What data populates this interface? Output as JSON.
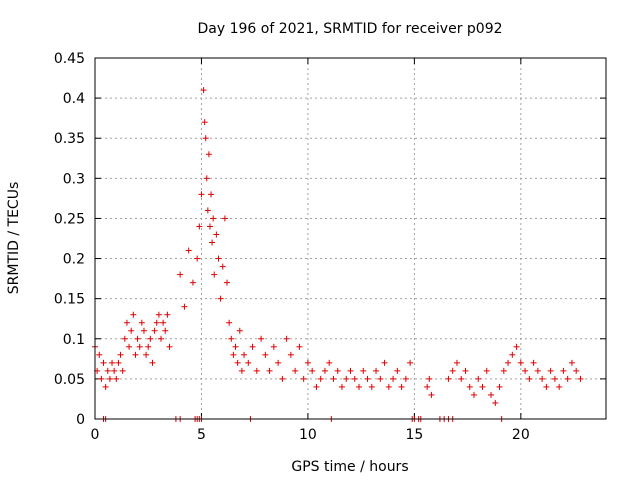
{
  "chart_data": {
    "type": "scatter",
    "title": "Day 196 of 2021, SRMTID for receiver p092",
    "xlabel": "GPS time / hours",
    "ylabel": "SRMTID / TECUs",
    "xlim": [
      0,
      24
    ],
    "ylim": [
      0,
      0.45
    ],
    "xticks": [
      0,
      5,
      10,
      15,
      20
    ],
    "yticks": [
      0,
      0.05,
      0.1,
      0.15,
      0.2,
      0.25,
      0.3,
      0.35,
      0.4,
      0.45
    ],
    "xtick_labels": [
      "0",
      "5",
      "10",
      "15",
      "20"
    ],
    "ytick_labels": [
      "0",
      "0.05",
      "0.1",
      "0.15",
      "0.2",
      "0.25",
      "0.3",
      "0.35",
      "0.4",
      "0.45"
    ],
    "grid": true,
    "marker": "+",
    "color": "#e00000",
    "series": [
      {
        "name": "SRMTID",
        "x": [
          0.0,
          0.1,
          0.2,
          0.3,
          0.4,
          0.5,
          0.6,
          0.7,
          0.8,
          0.9,
          1.0,
          1.1,
          1.2,
          1.3,
          1.4,
          1.5,
          1.6,
          1.7,
          1.8,
          1.9,
          2.0,
          2.1,
          2.2,
          2.3,
          2.4,
          2.5,
          2.6,
          2.7,
          2.8,
          2.9,
          3.0,
          3.1,
          3.2,
          3.3,
          3.4,
          3.5,
          4.0,
          4.2,
          4.4,
          4.6,
          4.8,
          4.9,
          5.0,
          5.1,
          5.15,
          5.2,
          5.25,
          5.3,
          5.35,
          5.4,
          5.45,
          5.5,
          5.55,
          5.6,
          5.7,
          5.8,
          5.9,
          6.0,
          6.1,
          6.2,
          6.3,
          6.4,
          6.5,
          6.6,
          6.7,
          6.8,
          6.9,
          7.0,
          7.2,
          7.4,
          7.6,
          7.8,
          8.0,
          8.2,
          8.4,
          8.6,
          8.8,
          9.0,
          9.2,
          9.4,
          9.6,
          9.8,
          10.0,
          10.2,
          10.4,
          10.6,
          10.8,
          11.0,
          11.2,
          11.4,
          11.6,
          11.8,
          12.0,
          12.2,
          12.4,
          12.6,
          12.8,
          13.0,
          13.2,
          13.4,
          13.6,
          13.8,
          14.0,
          14.2,
          14.4,
          14.6,
          14.8,
          15.6,
          15.7,
          15.8,
          16.6,
          16.8,
          17.0,
          17.2,
          17.4,
          17.6,
          17.8,
          18.0,
          18.2,
          18.4,
          18.6,
          18.8,
          19.0,
          19.2,
          19.4,
          19.6,
          19.8,
          20.0,
          20.2,
          20.4,
          20.6,
          20.8,
          21.0,
          21.2,
          21.4,
          21.6,
          21.8,
          22.0,
          22.2,
          22.4,
          22.6,
          22.8,
          0.4,
          0.5,
          3.8,
          4.0,
          4.7,
          4.8,
          4.9,
          5.0,
          7.3,
          11.1,
          14.9,
          15.0,
          15.2,
          15.3,
          16.2,
          16.4,
          16.6,
          16.8,
          19.1
        ],
        "y": [
          0.09,
          0.06,
          0.08,
          0.05,
          0.07,
          0.04,
          0.06,
          0.05,
          0.07,
          0.06,
          0.05,
          0.07,
          0.08,
          0.06,
          0.1,
          0.12,
          0.09,
          0.11,
          0.13,
          0.08,
          0.1,
          0.09,
          0.12,
          0.11,
          0.08,
          0.09,
          0.1,
          0.07,
          0.11,
          0.12,
          0.13,
          0.1,
          0.12,
          0.11,
          0.13,
          0.09,
          0.18,
          0.14,
          0.21,
          0.17,
          0.2,
          0.24,
          0.28,
          0.41,
          0.37,
          0.35,
          0.3,
          0.26,
          0.33,
          0.24,
          0.28,
          0.22,
          0.25,
          0.18,
          0.23,
          0.2,
          0.15,
          0.19,
          0.25,
          0.17,
          0.12,
          0.1,
          0.08,
          0.09,
          0.07,
          0.11,
          0.06,
          0.08,
          0.07,
          0.09,
          0.06,
          0.1,
          0.08,
          0.06,
          0.09,
          0.07,
          0.05,
          0.1,
          0.08,
          0.06,
          0.09,
          0.05,
          0.07,
          0.06,
          0.04,
          0.05,
          0.06,
          0.07,
          0.05,
          0.06,
          0.04,
          0.05,
          0.06,
          0.05,
          0.04,
          0.06,
          0.05,
          0.04,
          0.06,
          0.05,
          0.07,
          0.04,
          0.05,
          0.06,
          0.04,
          0.05,
          0.07,
          0.04,
          0.05,
          0.03,
          0.05,
          0.06,
          0.07,
          0.05,
          0.06,
          0.04,
          0.03,
          0.05,
          0.04,
          0.06,
          0.03,
          0.02,
          0.04,
          0.06,
          0.07,
          0.08,
          0.09,
          0.07,
          0.06,
          0.05,
          0.07,
          0.06,
          0.05,
          0.04,
          0.06,
          0.05,
          0.04,
          0.06,
          0.05,
          0.07,
          0.06,
          0.05,
          0.0,
          0.0,
          0.0,
          0.0,
          0.0,
          0.0,
          0.0,
          0.0,
          0.0,
          0.0,
          0.0,
          0.0,
          0.0,
          0.0,
          0.0,
          0.0,
          0.0,
          0.0,
          0.0
        ]
      }
    ]
  }
}
